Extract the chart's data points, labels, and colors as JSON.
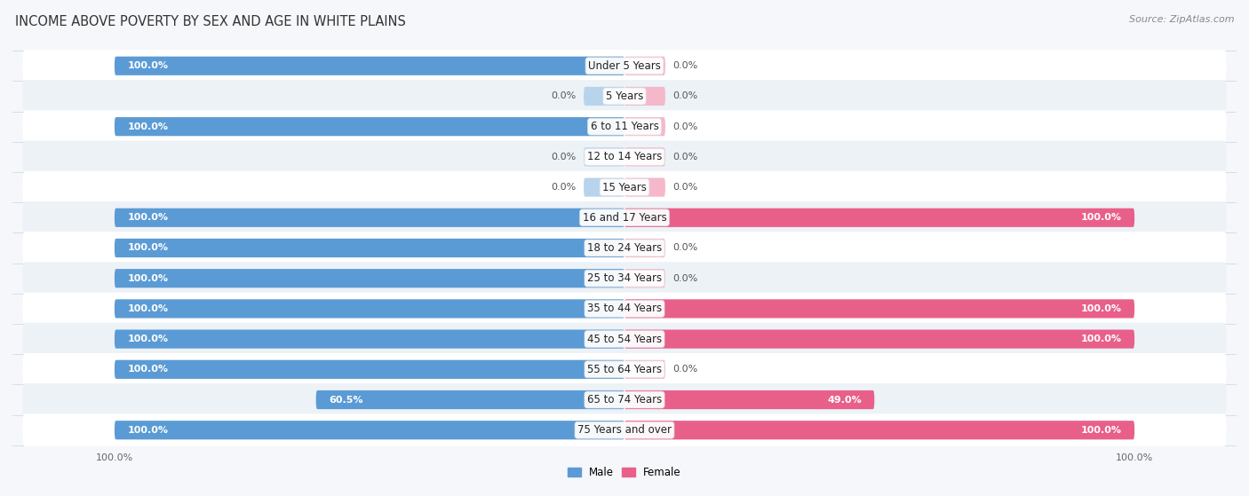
{
  "title": "INCOME ABOVE POVERTY BY SEX AND AGE IN WHITE PLAINS",
  "source": "Source: ZipAtlas.com",
  "categories": [
    "Under 5 Years",
    "5 Years",
    "6 to 11 Years",
    "12 to 14 Years",
    "15 Years",
    "16 and 17 Years",
    "18 to 24 Years",
    "25 to 34 Years",
    "35 to 44 Years",
    "45 to 54 Years",
    "55 to 64 Years",
    "65 to 74 Years",
    "75 Years and over"
  ],
  "male_values": [
    100.0,
    0.0,
    100.0,
    0.0,
    0.0,
    100.0,
    100.0,
    100.0,
    100.0,
    100.0,
    100.0,
    60.5,
    100.0
  ],
  "female_values": [
    0.0,
    0.0,
    0.0,
    0.0,
    0.0,
    100.0,
    0.0,
    0.0,
    100.0,
    100.0,
    0.0,
    49.0,
    100.0
  ],
  "male_color": "#5b9bd5",
  "male_color_light": "#b8d4ed",
  "female_color": "#e8608a",
  "female_color_light": "#f5b8cb",
  "row_bg_white": "#ffffff",
  "row_bg_light": "#edf2f7",
  "fig_bg": "#f5f7fa",
  "bar_height": 0.62,
  "stub_pct": 8.0,
  "max_val": 100.0,
  "title_fontsize": 10.5,
  "label_fontsize": 8.5,
  "value_fontsize": 8.0,
  "tick_fontsize": 8.0,
  "source_fontsize": 8.0,
  "xlim_left": -120,
  "xlim_right": 120
}
